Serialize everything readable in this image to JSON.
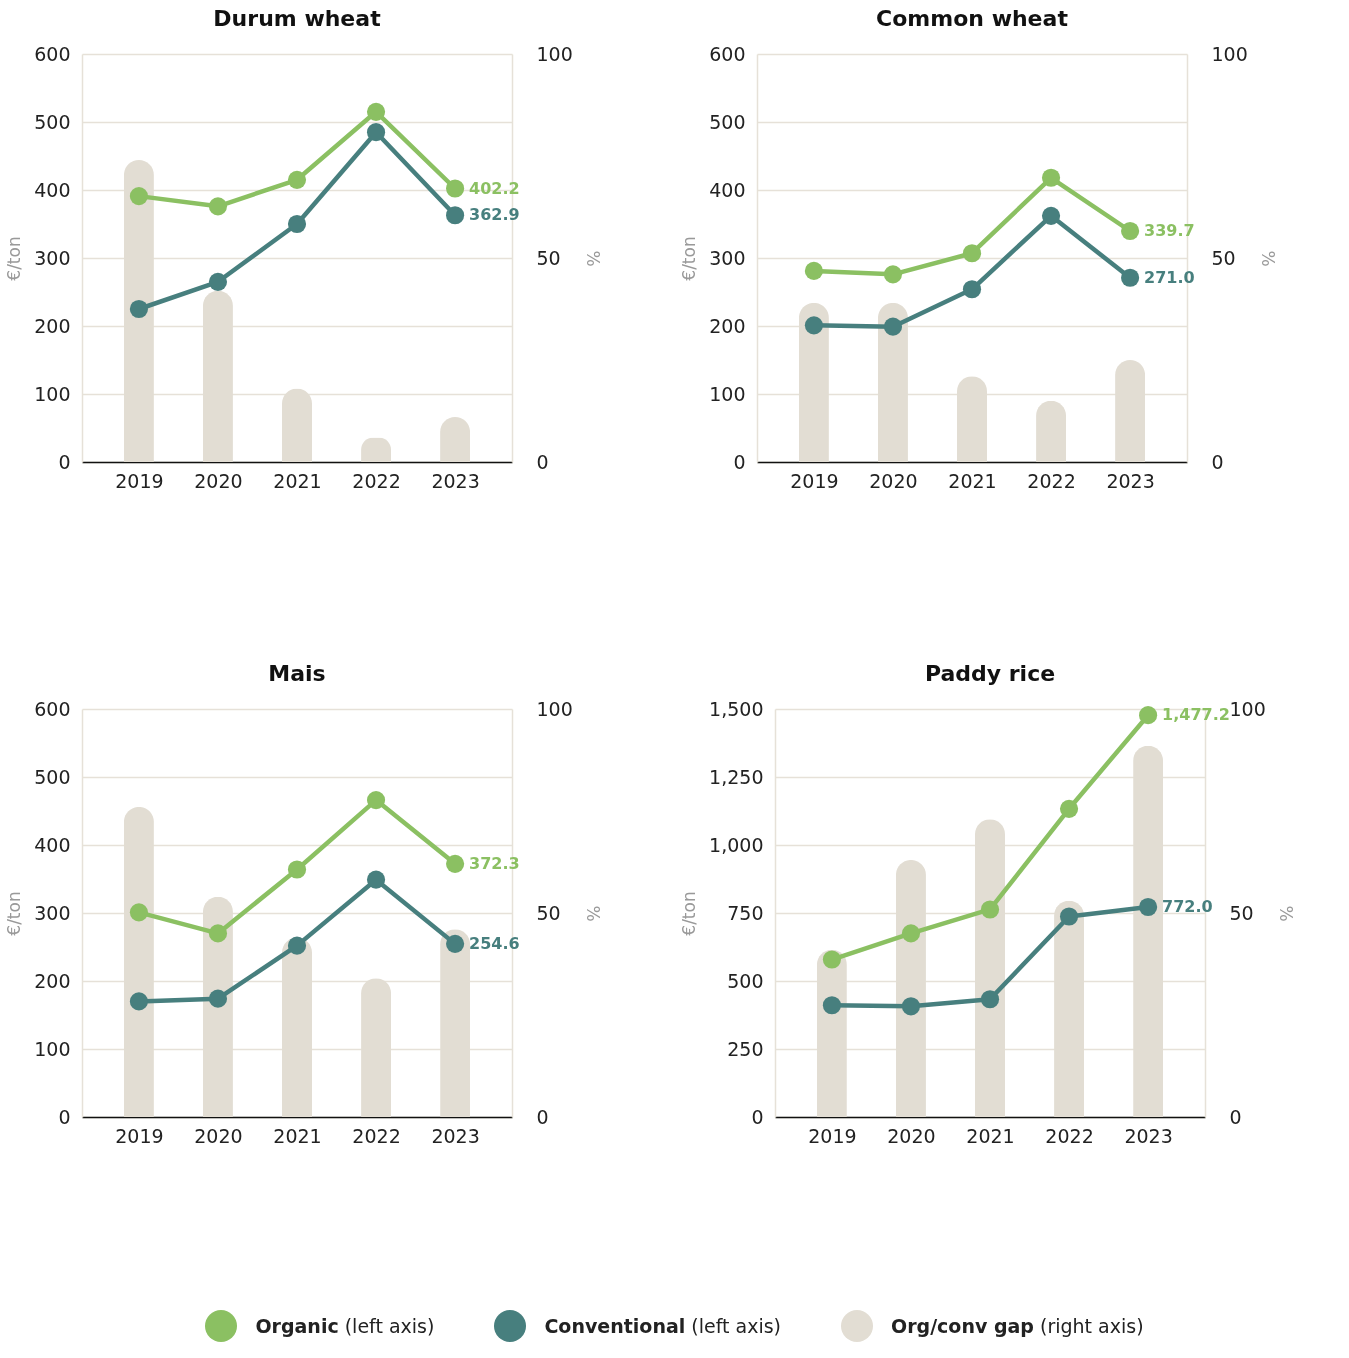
{
  "chart_data": [
    {
      "type": "line",
      "title": "Durum wheat",
      "ylabel": "€/ton",
      "y2label": "%",
      "categories": [
        "2019",
        "2020",
        "2021",
        "2022",
        "2023"
      ],
      "ylim": [
        0,
        600
      ],
      "yticks": [
        0,
        100,
        200,
        300,
        400,
        500,
        600
      ],
      "y2lim": [
        0,
        100
      ],
      "y2ticks": [
        0,
        50,
        100
      ],
      "grid": "y",
      "marker": "circle",
      "legend": "bottom",
      "series": [
        {
          "name": "Org/conv gap (right axis)",
          "type": "bar",
          "axis": "y2",
          "color": "#e2ddd3",
          "values": [
            74,
            42,
            18,
            6,
            11
          ]
        },
        {
          "name": "Organic (left axis)",
          "color": "#8bc062",
          "values": [
            391,
            376,
            415,
            515,
            402.2
          ],
          "value_labels": [
            null,
            null,
            null,
            null,
            "402.2"
          ]
        },
        {
          "name": "Conventional (left axis)",
          "color": "#477f7e",
          "values": [
            225,
            265,
            350,
            485,
            362.9
          ],
          "value_labels": [
            null,
            null,
            null,
            null,
            "362.9"
          ]
        }
      ]
    },
    {
      "type": "line",
      "title": "Common wheat",
      "ylabel": "€/ton",
      "y2label": "%",
      "categories": [
        "2019",
        "2020",
        "2021",
        "2022",
        "2023"
      ],
      "ylim": [
        0,
        600
      ],
      "yticks": [
        0,
        100,
        200,
        300,
        400,
        500,
        600
      ],
      "y2lim": [
        0,
        100
      ],
      "y2ticks": [
        0,
        50,
        100
      ],
      "grid": "y",
      "marker": "circle",
      "legend": "bottom",
      "series": [
        {
          "name": "Org/conv gap (right axis)",
          "type": "bar",
          "axis": "y2",
          "color": "#e2ddd3",
          "values": [
            39,
            39,
            21,
            15,
            25
          ]
        },
        {
          "name": "Organic (left axis)",
          "color": "#8bc062",
          "values": [
            281,
            276,
            307,
            418,
            339.7
          ],
          "value_labels": [
            null,
            null,
            null,
            null,
            "339.7"
          ]
        },
        {
          "name": "Conventional (left axis)",
          "color": "#477f7e",
          "values": [
            201,
            199,
            254,
            362,
            271.0
          ],
          "value_labels": [
            null,
            null,
            null,
            null,
            "271.0"
          ]
        }
      ]
    },
    {
      "type": "line",
      "title": "Mais",
      "ylabel": "€/ton",
      "y2label": "%",
      "categories": [
        "2019",
        "2020",
        "2021",
        "2022",
        "2023"
      ],
      "ylim": [
        0,
        600
      ],
      "yticks": [
        0,
        100,
        200,
        300,
        400,
        500,
        600
      ],
      "y2lim": [
        0,
        100
      ],
      "y2ticks": [
        0,
        50,
        100
      ],
      "grid": "y",
      "marker": "circle",
      "legend": "bottom",
      "series": [
        {
          "name": "Org/conv gap (right axis)",
          "type": "bar",
          "axis": "y2",
          "color": "#e2ddd3",
          "values": [
            76,
            54,
            44,
            34,
            46
          ]
        },
        {
          "name": "Organic (left axis)",
          "color": "#8bc062",
          "values": [
            301,
            270,
            364,
            466,
            372.3
          ],
          "value_labels": [
            null,
            null,
            null,
            null,
            "372.3"
          ]
        },
        {
          "name": "Conventional (left axis)",
          "color": "#477f7e",
          "values": [
            170,
            174,
            252,
            349,
            254.6
          ],
          "value_labels": [
            null,
            null,
            null,
            null,
            "254.6"
          ]
        }
      ]
    },
    {
      "type": "line",
      "title": "Paddy rice",
      "ylabel": "€/ton",
      "y2label": "%",
      "categories": [
        "2019",
        "2020",
        "2021",
        "2022",
        "2023"
      ],
      "ylim": [
        0,
        1500
      ],
      "yticks": [
        0,
        250,
        500,
        750,
        {
          "value": 1000,
          "label": "1,000"
        },
        {
          "value": 1250,
          "label": "1,250"
        },
        {
          "value": 1500,
          "label": "1,500"
        }
      ],
      "y2lim": [
        0,
        100
      ],
      "y2ticks": [
        0,
        50,
        100
      ],
      "grid": "y",
      "marker": "circle",
      "legend": "bottom",
      "series": [
        {
          "name": "Org/conv gap (right axis)",
          "type": "bar",
          "axis": "y2",
          "color": "#e2ddd3",
          "values": [
            41,
            63,
            73,
            53,
            91
          ]
        },
        {
          "name": "Organic (left axis)",
          "color": "#8bc062",
          "values": [
            579,
            675,
            763,
            1133,
            1477.2
          ],
          "value_labels": [
            null,
            null,
            null,
            null,
            "1,477.2"
          ]
        },
        {
          "name": "Conventional (left axis)",
          "color": "#477f7e",
          "values": [
            411,
            407,
            433,
            737,
            772.0
          ],
          "value_labels": [
            null,
            null,
            null,
            null,
            "772.0"
          ]
        }
      ]
    }
  ]
}
